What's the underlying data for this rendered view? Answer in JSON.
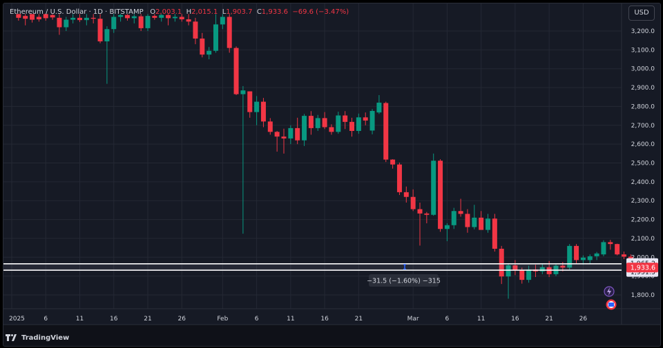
{
  "header": {
    "symbol": "Ethereum / U.S. Dollar · 1D · BITSTAMP",
    "open_label": "O",
    "open_value": "2,003.1",
    "high_label": "H",
    "high_value": "2,015.1",
    "low_label": "L",
    "low_value": "1,903.7",
    "close_label": "C",
    "close_value": "1,933.6",
    "change": "−69.6 (−3.47%)"
  },
  "currency_button": "USD",
  "branding": "TradingView",
  "measure_label": "−31.5 (−1.60%) −315",
  "colors": {
    "up": "#089981",
    "down": "#f23645",
    "background": "#161a25",
    "grid": "#242834"
  },
  "icons": [
    "lightning-icon",
    "flag-icon",
    "tradingview-logo-icon"
  ],
  "chart_data": {
    "type": "candlestick",
    "title": "Ethereum / U.S. Dollar · 1D · BITSTAMP",
    "ylim": [
      1745,
      3285
    ],
    "xlim_day_index": [
      -1,
      89
    ],
    "y_ticks": [
      3200,
      3100,
      3000,
      2900,
      2800,
      2700,
      2600,
      2500,
      2400,
      2300,
      2200,
      2100,
      2000,
      1900,
      1800
    ],
    "y_tick_labels": [
      "3,200.0",
      "3,100.0",
      "3,000.0",
      "2,900.0",
      "2,800.0",
      "2,700.0",
      "2,600.0",
      "2,500.0",
      "2,400.0",
      "2,300.0",
      "2,200.0",
      "2,100.0",
      "2,000.0",
      "1,900.0",
      "1,800.0"
    ],
    "x_ticks": [
      {
        "label": "2025",
        "day": 0
      },
      {
        "label": "6",
        "day": 5
      },
      {
        "label": "11",
        "day": 10
      },
      {
        "label": "16",
        "day": 15
      },
      {
        "label": "21",
        "day": 20
      },
      {
        "label": "26",
        "day": 25
      },
      {
        "label": "Feb",
        "day": 31
      },
      {
        "label": "6",
        "day": 36
      },
      {
        "label": "11",
        "day": 41
      },
      {
        "label": "16",
        "day": 46
      },
      {
        "label": "21",
        "day": 51
      },
      {
        "label": "Mar",
        "day": 59
      },
      {
        "label": "6",
        "day": 64
      },
      {
        "label": "11",
        "day": 69
      },
      {
        "label": "16",
        "day": 74
      },
      {
        "label": "21",
        "day": 79
      },
      {
        "label": "26",
        "day": 84
      }
    ],
    "candles": [
      {
        "d": 1,
        "o": 3290,
        "h": 3290,
        "l": 3255,
        "c": 3270
      },
      {
        "d": 2,
        "o": 3280,
        "h": 3290,
        "l": 3230,
        "c": 3265
      },
      {
        "d": 3,
        "o": 3290,
        "h": 3290,
        "l": 3245,
        "c": 3260
      },
      {
        "d": 4,
        "o": 3275,
        "h": 3290,
        "l": 3250,
        "c": 3262
      },
      {
        "d": 5,
        "o": 3290,
        "h": 3290,
        "l": 3255,
        "c": 3268
      },
      {
        "d": 6,
        "o": 3285,
        "h": 3290,
        "l": 3260,
        "c": 3272
      },
      {
        "d": 7,
        "o": 3270,
        "h": 3290,
        "l": 3180,
        "c": 3220
      },
      {
        "d": 8,
        "o": 3220,
        "h": 3275,
        "l": 3200,
        "c": 3260
      },
      {
        "d": 9,
        "o": 3260,
        "h": 3290,
        "l": 3240,
        "c": 3270
      },
      {
        "d": 10,
        "o": 3270,
        "h": 3290,
        "l": 3248,
        "c": 3258
      },
      {
        "d": 11,
        "o": 3258,
        "h": 3290,
        "l": 3230,
        "c": 3270
      },
      {
        "d": 12,
        "o": 3270,
        "h": 3290,
        "l": 3240,
        "c": 3265
      },
      {
        "d": 13,
        "o": 3265,
        "h": 3290,
        "l": 3135,
        "c": 3145
      },
      {
        "d": 14,
        "o": 3145,
        "h": 3225,
        "l": 2920,
        "c": 3210
      },
      {
        "d": 15,
        "o": 3210,
        "h": 3290,
        "l": 3190,
        "c": 3275
      },
      {
        "d": 16,
        "o": 3275,
        "h": 3290,
        "l": 3250,
        "c": 3285
      },
      {
        "d": 17,
        "o": 3285,
        "h": 3290,
        "l": 3255,
        "c": 3268
      },
      {
        "d": 18,
        "o": 3268,
        "h": 3290,
        "l": 3240,
        "c": 3278
      },
      {
        "d": 19,
        "o": 3278,
        "h": 3290,
        "l": 3200,
        "c": 3215
      },
      {
        "d": 20,
        "o": 3215,
        "h": 3290,
        "l": 3200,
        "c": 3280
      },
      {
        "d": 21,
        "o": 3280,
        "h": 3290,
        "l": 3260,
        "c": 3270
      },
      {
        "d": 22,
        "o": 3270,
        "h": 3290,
        "l": 3250,
        "c": 3285
      },
      {
        "d": 23,
        "o": 3285,
        "h": 3290,
        "l": 3230,
        "c": 3268
      },
      {
        "d": 24,
        "o": 3268,
        "h": 3290,
        "l": 3250,
        "c": 3275
      },
      {
        "d": 25,
        "o": 3275,
        "h": 3290,
        "l": 3250,
        "c": 3262
      },
      {
        "d": 26,
        "o": 3262,
        "h": 3290,
        "l": 3230,
        "c": 3250
      },
      {
        "d": 27,
        "o": 3250,
        "h": 3270,
        "l": 3130,
        "c": 3160
      },
      {
        "d": 28,
        "o": 3160,
        "h": 3190,
        "l": 3060,
        "c": 3075
      },
      {
        "d": 29,
        "o": 3075,
        "h": 3115,
        "l": 3050,
        "c": 3095
      },
      {
        "d": 30,
        "o": 3095,
        "h": 3290,
        "l": 3085,
        "c": 3235
      },
      {
        "d": 31,
        "o": 3235,
        "h": 3290,
        "l": 3210,
        "c": 3275
      },
      {
        "d": 32,
        "o": 3275,
        "h": 3290,
        "l": 3085,
        "c": 3110
      },
      {
        "d": 33,
        "o": 3110,
        "h": 3118,
        "l": 2860,
        "c": 2865
      },
      {
        "d": 34,
        "o": 2865,
        "h": 2908,
        "l": 2125,
        "c": 2885
      },
      {
        "d": 35,
        "o": 2880,
        "h": 2880,
        "l": 2740,
        "c": 2770
      },
      {
        "d": 36,
        "o": 2770,
        "h": 2855,
        "l": 2700,
        "c": 2825
      },
      {
        "d": 37,
        "o": 2825,
        "h": 2845,
        "l": 2690,
        "c": 2720
      },
      {
        "d": 38,
        "o": 2720,
        "h": 2738,
        "l": 2650,
        "c": 2665
      },
      {
        "d": 39,
        "o": 2665,
        "h": 2670,
        "l": 2560,
        "c": 2640
      },
      {
        "d": 40,
        "o": 2640,
        "h": 2682,
        "l": 2550,
        "c": 2630
      },
      {
        "d": 41,
        "o": 2630,
        "h": 2700,
        "l": 2600,
        "c": 2685
      },
      {
        "d": 42,
        "o": 2685,
        "h": 2740,
        "l": 2600,
        "c": 2620
      },
      {
        "d": 43,
        "o": 2620,
        "h": 2760,
        "l": 2590,
        "c": 2750
      },
      {
        "d": 44,
        "o": 2750,
        "h": 2775,
        "l": 2650,
        "c": 2685
      },
      {
        "d": 45,
        "o": 2685,
        "h": 2755,
        "l": 2670,
        "c": 2738
      },
      {
        "d": 46,
        "o": 2738,
        "h": 2770,
        "l": 2680,
        "c": 2690
      },
      {
        "d": 47,
        "o": 2690,
        "h": 2705,
        "l": 2650,
        "c": 2665
      },
      {
        "d": 48,
        "o": 2665,
        "h": 2772,
        "l": 2655,
        "c": 2752
      },
      {
        "d": 49,
        "o": 2752,
        "h": 2775,
        "l": 2680,
        "c": 2718
      },
      {
        "d": 50,
        "o": 2718,
        "h": 2740,
        "l": 2640,
        "c": 2670
      },
      {
        "d": 51,
        "o": 2670,
        "h": 2762,
        "l": 2655,
        "c": 2742
      },
      {
        "d": 52,
        "o": 2742,
        "h": 2768,
        "l": 2700,
        "c": 2725
      },
      {
        "d": 53,
        "o": 2672,
        "h": 2786,
        "l": 2652,
        "c": 2776
      },
      {
        "d": 54,
        "o": 2768,
        "h": 2860,
        "l": 2760,
        "c": 2820
      },
      {
        "d": 55,
        "o": 2818,
        "h": 2825,
        "l": 2505,
        "c": 2518
      },
      {
        "d": 56,
        "o": 2518,
        "h": 2520,
        "l": 2470,
        "c": 2492
      },
      {
        "d": 57,
        "o": 2492,
        "h": 2502,
        "l": 2330,
        "c": 2345
      },
      {
        "d": 58,
        "o": 2345,
        "h": 2375,
        "l": 2290,
        "c": 2320
      },
      {
        "d": 59,
        "o": 2320,
        "h": 2360,
        "l": 2245,
        "c": 2255
      },
      {
        "d": 60,
        "o": 2255,
        "h": 2290,
        "l": 2062,
        "c": 2232
      },
      {
        "d": 61,
        "o": 2232,
        "h": 2240,
        "l": 2180,
        "c": 2225
      },
      {
        "d": 62,
        "o": 2225,
        "h": 2550,
        "l": 2220,
        "c": 2512
      },
      {
        "d": 63,
        "o": 2512,
        "h": 2520,
        "l": 2135,
        "c": 2150
      },
      {
        "d": 64,
        "o": 2150,
        "h": 2180,
        "l": 2085,
        "c": 2170
      },
      {
        "d": 65,
        "o": 2170,
        "h": 2262,
        "l": 2150,
        "c": 2245
      },
      {
        "d": 66,
        "o": 2245,
        "h": 2310,
        "l": 2215,
        "c": 2230
      },
      {
        "d": 67,
        "o": 2230,
        "h": 2255,
        "l": 2130,
        "c": 2160
      },
      {
        "d": 68,
        "o": 2160,
        "h": 2278,
        "l": 2148,
        "c": 2210
      },
      {
        "d": 69,
        "o": 2210,
        "h": 2245,
        "l": 2150,
        "c": 2145
      },
      {
        "d": 70,
        "o": 2145,
        "h": 2230,
        "l": 2130,
        "c": 2205
      },
      {
        "d": 71,
        "o": 2205,
        "h": 2230,
        "l": 2030,
        "c": 2045
      },
      {
        "d": 72,
        "o": 2045,
        "h": 2060,
        "l": 1858,
        "c": 1898
      },
      {
        "d": 73,
        "o": 1898,
        "h": 1965,
        "l": 1780,
        "c": 1957
      },
      {
        "d": 74,
        "o": 1957,
        "h": 1985,
        "l": 1905,
        "c": 1930
      },
      {
        "d": 75,
        "o": 1930,
        "h": 1945,
        "l": 1860,
        "c": 1880
      },
      {
        "d": 76,
        "o": 1880,
        "h": 1955,
        "l": 1865,
        "c": 1935
      },
      {
        "d": 77,
        "o": 1935,
        "h": 1960,
        "l": 1895,
        "c": 1925
      },
      {
        "d": 78,
        "o": 1925,
        "h": 1968,
        "l": 1910,
        "c": 1947
      },
      {
        "d": 79,
        "o": 1947,
        "h": 1980,
        "l": 1895,
        "c": 1910
      },
      {
        "d": 80,
        "o": 1910,
        "h": 1962,
        "l": 1900,
        "c": 1955
      },
      {
        "d": 81,
        "o": 1955,
        "h": 1975,
        "l": 1925,
        "c": 1945
      },
      {
        "d": 82,
        "o": 1945,
        "h": 2070,
        "l": 1935,
        "c": 2060
      },
      {
        "d": 83,
        "o": 2060,
        "h": 2070,
        "l": 1965,
        "c": 1985
      },
      {
        "d": 84,
        "o": 1985,
        "h": 2010,
        "l": 1960,
        "c": 1998
      },
      {
        "d": 85,
        "o": 1985,
        "h": 2015,
        "l": 1965,
        "c": 2005
      },
      {
        "d": 86,
        "o": 2005,
        "h": 2028,
        "l": 1985,
        "c": 2020
      },
      {
        "d": 87,
        "o": 2015,
        "h": 2090,
        "l": 2005,
        "c": 2080
      },
      {
        "d": 88,
        "o": 2080,
        "h": 2092,
        "l": 2040,
        "c": 2070
      },
      {
        "d": 89,
        "o": 2070,
        "h": 2072,
        "l": 2010,
        "c": 2015
      },
      {
        "d": 90,
        "o": 2015,
        "h": 2030,
        "l": 1990,
        "c": 2003
      },
      {
        "d": 91,
        "o": 2003.1,
        "h": 2015.1,
        "l": 1903.7,
        "c": 1933.6
      }
    ],
    "horizontal_lines": [
      {
        "price": 1965.2,
        "label": "1,965.2"
      },
      {
        "price": 1931.5,
        "label": "1,931.5"
      }
    ],
    "last_price": {
      "price": 1933.6,
      "label": "1,933.6"
    },
    "measure": {
      "from": 1965.2,
      "to": 1933.6,
      "label": "−31.5 (−1.60%) −315"
    }
  }
}
